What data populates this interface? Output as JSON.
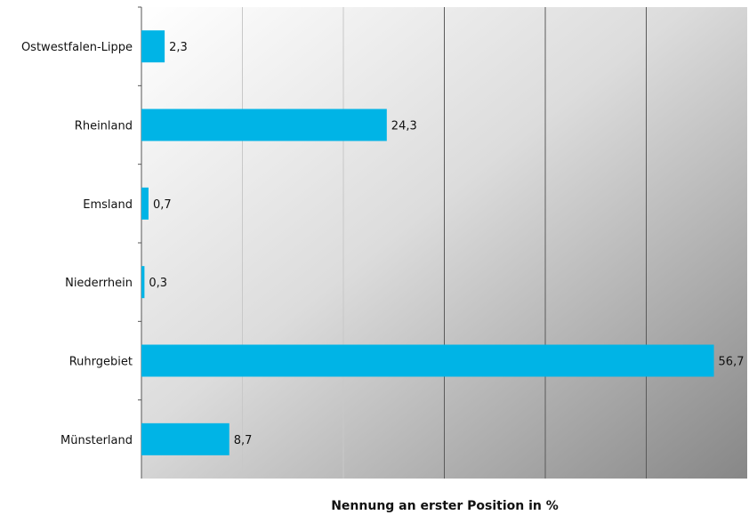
{
  "chart_data": {
    "type": "bar",
    "orientation": "horizontal",
    "categories": [
      "Ostwestfalen-Lippe",
      "Rheinland",
      "Emsland",
      "Niederrhein",
      "Ruhrgebiet",
      "Münsterland"
    ],
    "values": [
      2.3,
      24.3,
      0.7,
      0.3,
      56.7,
      8.7
    ],
    "value_labels": [
      "2,3",
      "24,3",
      "0,7",
      "0,3",
      "56,7",
      "8,7"
    ],
    "title": "",
    "xlabel": "Nennung an erster Position in %",
    "ylabel": "",
    "xlim": [
      0,
      60
    ],
    "grid": true,
    "bar_color": "#00b4e6"
  }
}
